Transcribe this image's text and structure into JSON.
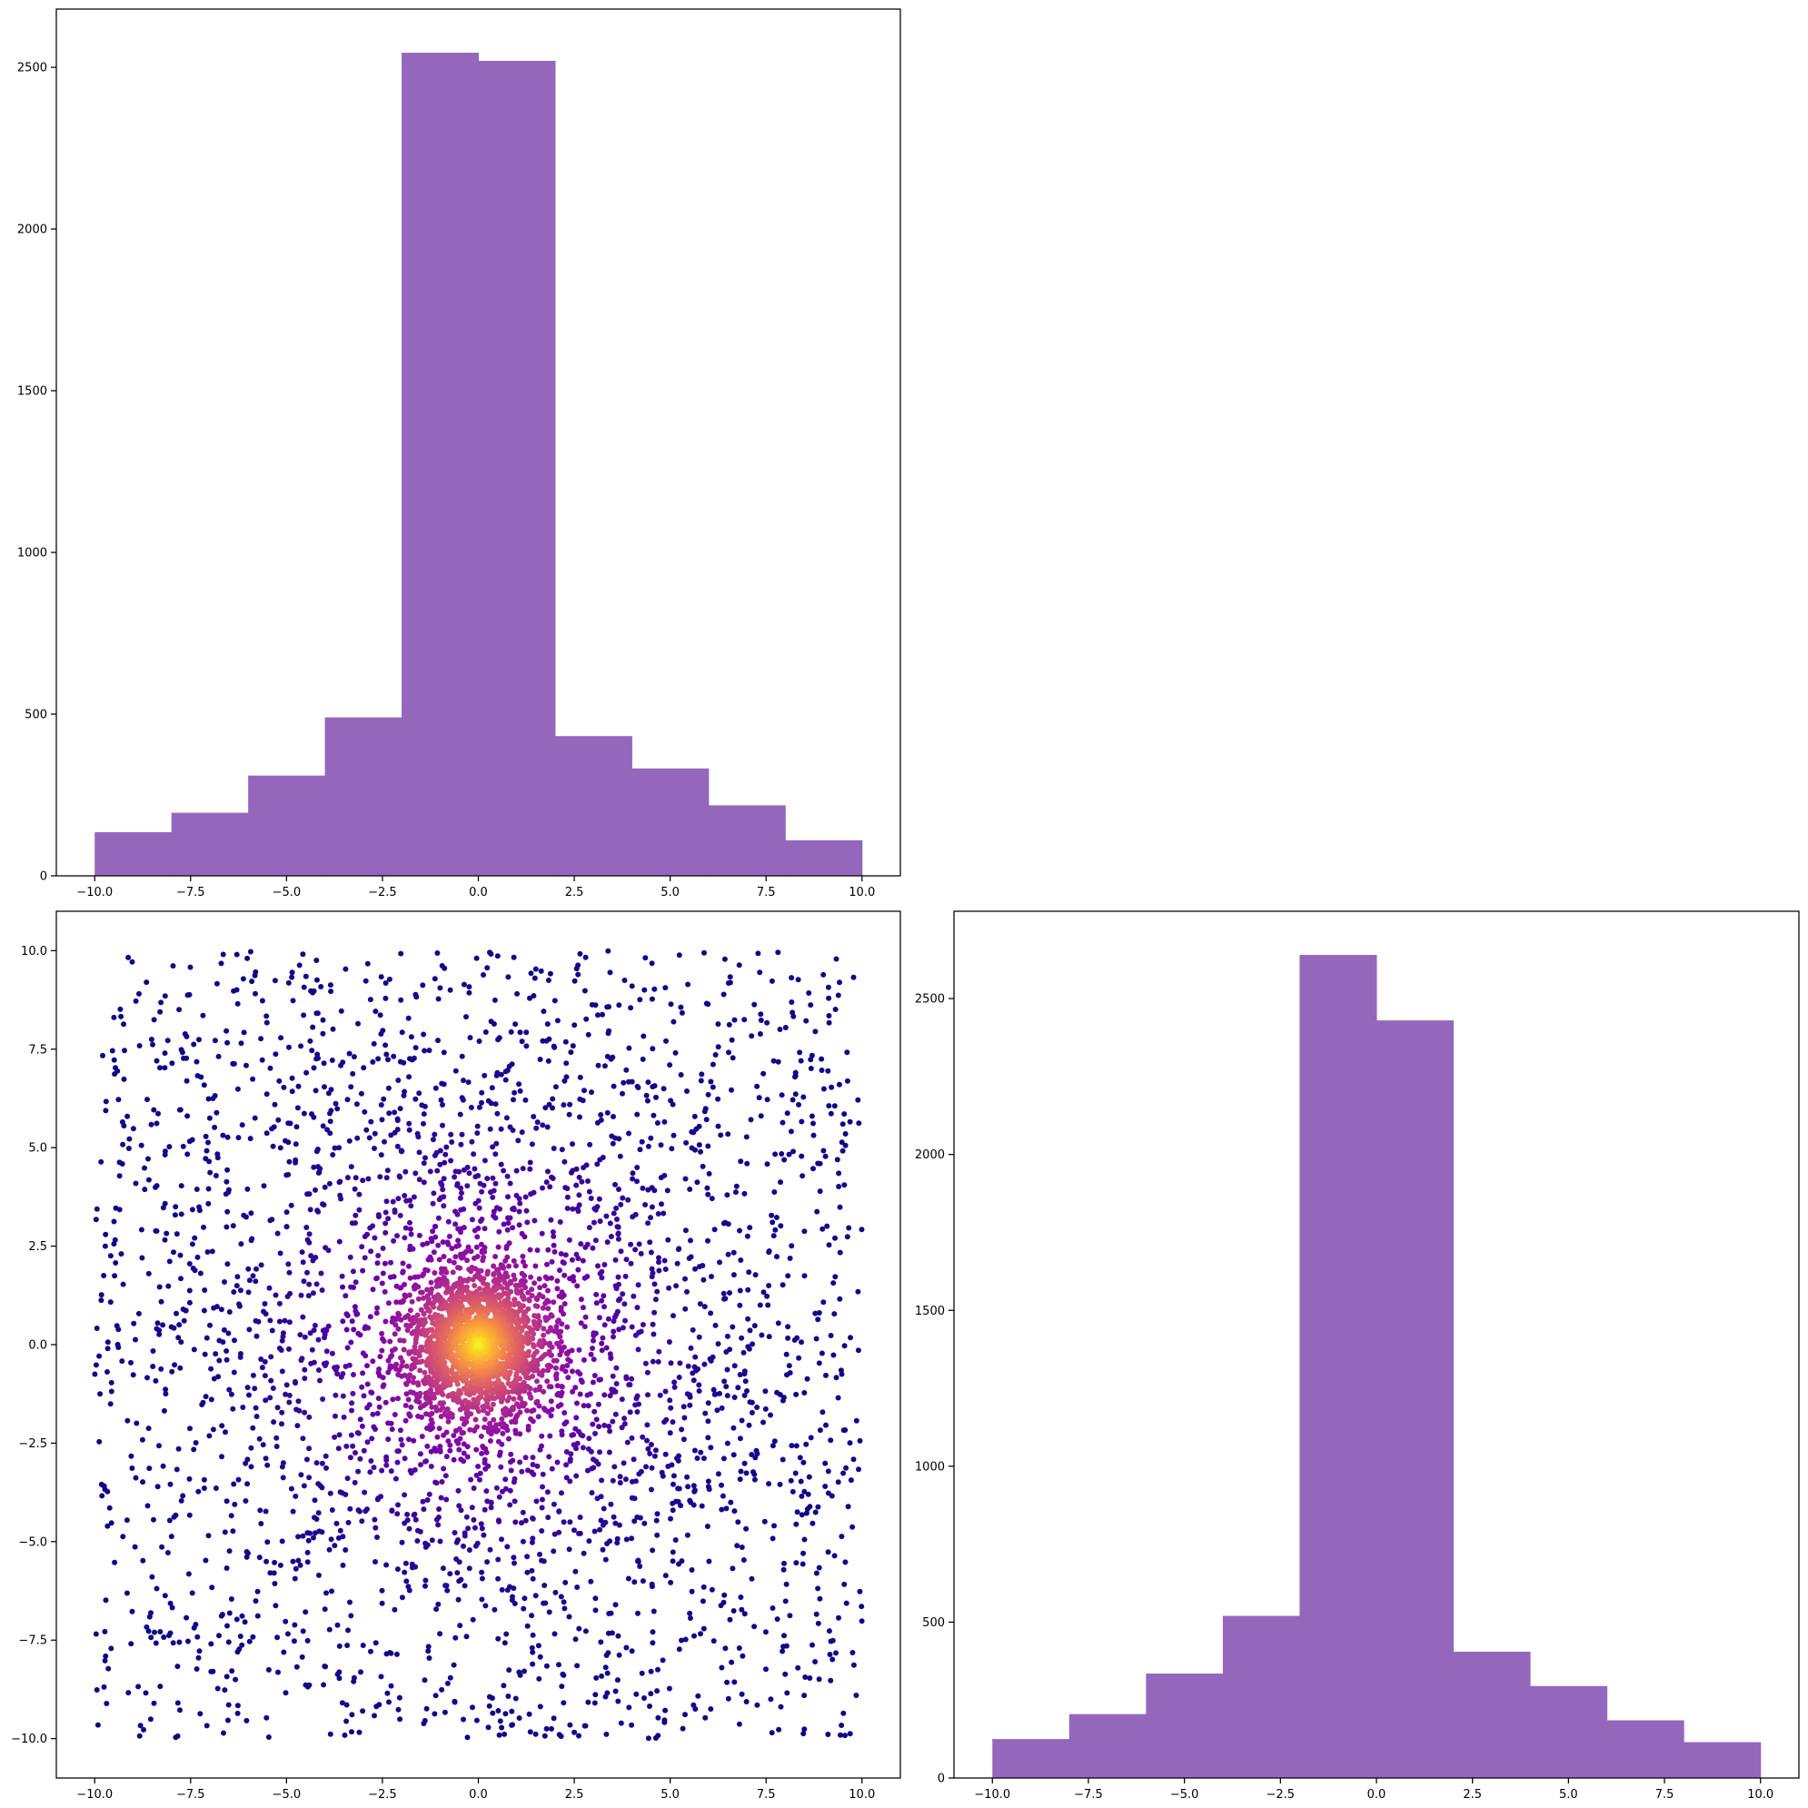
{
  "chart_data": [
    {
      "type": "bar",
      "panel": "top-left",
      "subtype": "histogram",
      "bin_edges": [
        -10,
        -8,
        -6,
        -4,
        -2,
        0,
        2,
        4,
        6,
        8,
        10
      ],
      "values": [
        135,
        195,
        310,
        490,
        2545,
        2520,
        432,
        332,
        218,
        110
      ],
      "color": "#9467bd",
      "xlim": [
        -11,
        11
      ],
      "ylim": [
        0,
        2680
      ],
      "xticks": [
        -10,
        -7.5,
        -5,
        -2.5,
        0,
        2.5,
        5,
        7.5,
        10
      ],
      "xtick_labels": [
        "−10.0",
        "−7.5",
        "−5.0",
        "−2.5",
        "0.0",
        "2.5",
        "5.0",
        "7.5",
        "10.0"
      ],
      "yticks": [
        0,
        500,
        1000,
        1500,
        2000,
        2500
      ],
      "ytick_labels": [
        "0",
        "500",
        "1000",
        "1500",
        "2000",
        "2500"
      ],
      "grid": false
    },
    {
      "type": "scatter",
      "panel": "bottom-left",
      "n_points_approx": 5000,
      "colormap": "plasma",
      "color_encoding": "density",
      "x_range": [
        -10,
        10
      ],
      "y_range": [
        -10,
        10
      ],
      "xlim": [
        -11,
        11
      ],
      "ylim": [
        -11,
        11
      ],
      "xticks": [
        -10,
        -7.5,
        -5,
        -2.5,
        0,
        2.5,
        5,
        7.5,
        10
      ],
      "xtick_labels": [
        "−10.0",
        "−7.5",
        "−5.0",
        "−2.5",
        "0.0",
        "2.5",
        "5.0",
        "7.5",
        "10.0"
      ],
      "yticks": [
        -10,
        -7.5,
        -5,
        -2.5,
        0,
        2.5,
        5,
        7.5,
        10
      ],
      "ytick_labels": [
        "−10.0",
        "−7.5",
        "−5.0",
        "−2.5",
        "0.0",
        "2.5",
        "5.0",
        "7.5",
        "10.0"
      ],
      "grid": false
    },
    {
      "type": "bar",
      "panel": "bottom-right",
      "subtype": "histogram",
      "bin_edges": [
        -10,
        -8,
        -6,
        -4,
        -2,
        0,
        2,
        4,
        6,
        8,
        10
      ],
      "values": [
        125,
        205,
        335,
        520,
        2640,
        2430,
        405,
        295,
        185,
        115
      ],
      "color": "#9467bd",
      "xlim": [
        -11,
        11
      ],
      "ylim": [
        0,
        2780
      ],
      "xticks": [
        -10,
        -7.5,
        -5,
        -2.5,
        0,
        2.5,
        5,
        7.5,
        10
      ],
      "xtick_labels": [
        "−10.0",
        "−7.5",
        "−5.0",
        "−2.5",
        "0.0",
        "2.5",
        "5.0",
        "7.5",
        "10.0"
      ],
      "yticks": [
        0,
        500,
        1000,
        1500,
        2000,
        2500
      ],
      "ytick_labels": [
        "0",
        "500",
        "1000",
        "1500",
        "2000",
        "2500"
      ],
      "grid": false
    }
  ]
}
